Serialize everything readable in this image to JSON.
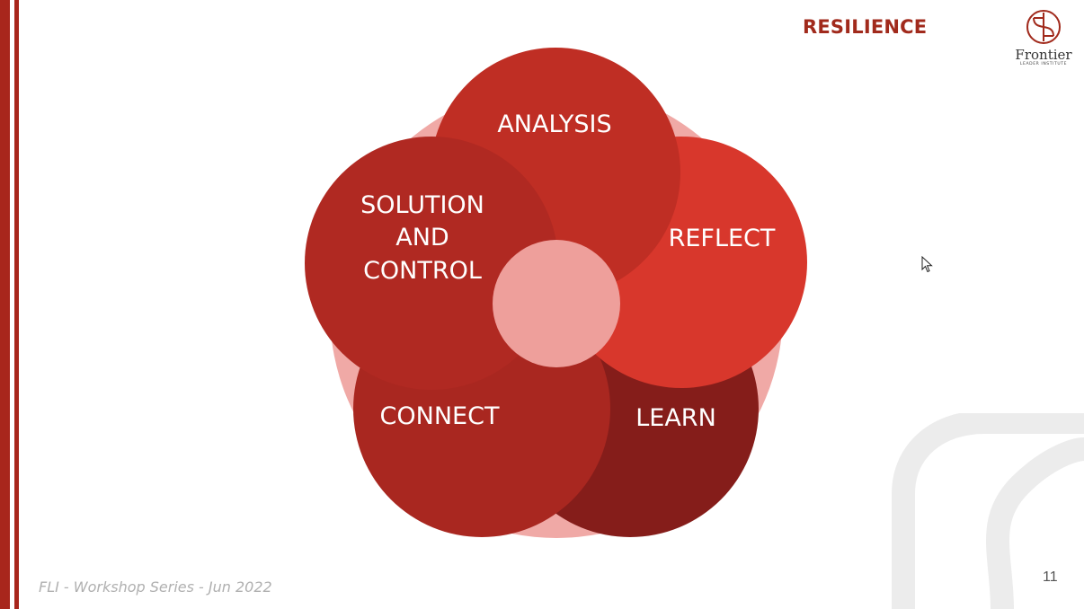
{
  "slide": {
    "title": "RESILIENCE",
    "page_number": "11",
    "footer": "FLI - Workshop Series - Jun 2022"
  },
  "logo": {
    "name": "Frontier",
    "subtitle": "LEADER INSTITUTE"
  },
  "diagram": {
    "petals": [
      {
        "id": "analysis",
        "label": "ANALYSIS",
        "color": "#bf2e24"
      },
      {
        "id": "reflect",
        "label": "REFLECT",
        "color": "#d8372c"
      },
      {
        "id": "learn",
        "label": "LEARN",
        "color": "#851d1a"
      },
      {
        "id": "connect",
        "label": "CONNECT",
        "color": "#a92720"
      },
      {
        "id": "solution",
        "label_lines": [
          "SOLUTION",
          "AND",
          "CONTROL"
        ],
        "color": "#b02922"
      }
    ],
    "background_circle_color": "#f0a9a6",
    "center_circle_color": "#ee9f9b"
  },
  "colors": {
    "accent": "#a8261c"
  }
}
